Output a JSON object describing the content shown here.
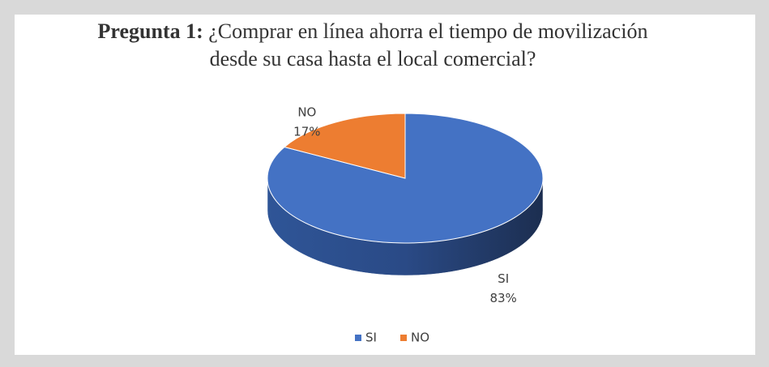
{
  "chart_data": {
    "type": "pie3d",
    "title_prefix": "Pregunta 1:",
    "title": "¿Comprar en línea ahorra el tiempo de movilización desde su casa hasta el local comercial?",
    "categories": [
      "SI",
      "NO"
    ],
    "values": [
      83,
      17
    ],
    "value_labels": [
      "83%",
      "17%"
    ],
    "colors": [
      "#4472c4",
      "#ed7d31"
    ],
    "legend": "bottom"
  }
}
